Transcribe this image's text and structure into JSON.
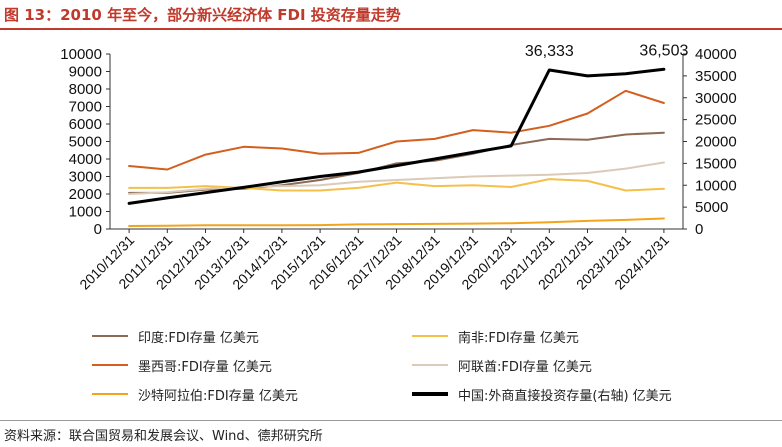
{
  "header": {
    "title": "图 13：2010 年至今，部分新兴经济体 FDI 投资存量走势"
  },
  "footer": {
    "source": "资料来源：联合国贸易和发展会议、Wind、德邦研究所"
  },
  "chart_data": {
    "type": "line",
    "categories": [
      "2010/12/31",
      "2011/12/31",
      "2012/12/31",
      "2013/12/31",
      "2014/12/31",
      "2015/12/31",
      "2016/12/31",
      "2017/12/31",
      "2018/12/31",
      "2019/12/31",
      "2020/12/31",
      "2021/12/31",
      "2022/12/31",
      "2023/12/31",
      "2024/12/31"
    ],
    "left_axis": {
      "ylim": [
        0,
        10000
      ],
      "ticks": [
        "0",
        "1000",
        "2000",
        "3000",
        "4000",
        "5000",
        "6000",
        "7000",
        "8000",
        "9000",
        "10000"
      ]
    },
    "right_axis": {
      "ylim": [
        0,
        40000
      ],
      "ticks": [
        "0",
        "5000",
        "10000",
        "15000",
        "20000",
        "25000",
        "30000",
        "35000",
        "40000"
      ]
    },
    "series": [
      {
        "name": "印度:FDI存量 亿美元",
        "axis": "left",
        "color": "#8b6b55",
        "values": [
          2060,
          2060,
          2250,
          2300,
          2500,
          2800,
          3200,
          3750,
          3900,
          4300,
          4800,
          5150,
          5100,
          5400,
          5500
        ]
      },
      {
        "name": "南非:FDI存量 亿美元",
        "axis": "left",
        "color": "#f5c04a",
        "values": [
          2350,
          2350,
          2450,
          2350,
          2200,
          2200,
          2350,
          2650,
          2450,
          2500,
          2400,
          2850,
          2750,
          2200,
          2300
        ]
      },
      {
        "name": "墨西哥:FDI存量 亿美元",
        "axis": "left",
        "color": "#d35f1e",
        "values": [
          3600,
          3400,
          4250,
          4700,
          4600,
          4300,
          4350,
          5000,
          5150,
          5650,
          5500,
          5900,
          6600,
          7900,
          7200
        ]
      },
      {
        "name": "阿联酋:FDI存量 亿美元",
        "axis": "left",
        "color": "#dccab8",
        "values": [
          2000,
          2100,
          2300,
          2400,
          2450,
          2500,
          2700,
          2800,
          2900,
          3000,
          3050,
          3100,
          3200,
          3450,
          3800
        ]
      },
      {
        "name": "沙特阿拉伯:FDI存量 亿美元",
        "axis": "left",
        "color": "#f2a51c",
        "values": [
          170,
          190,
          210,
          215,
          220,
          225,
          260,
          280,
          290,
          310,
          330,
          390,
          460,
          520,
          600
        ]
      },
      {
        "name": "中国:外商直接投资存量(右轴) 亿美元",
        "axis": "right",
        "color": "#000000",
        "values": [
          5850,
          7100,
          8300,
          9500,
          10800,
          12000,
          13000,
          14500,
          16000,
          17500,
          19000,
          36333,
          35000,
          35500,
          36503
        ]
      }
    ],
    "annotations": [
      {
        "text": "36,333",
        "series": "中国:外商直接投资存量(右轴) 亿美元",
        "category": "2021/12/31"
      },
      {
        "text": "36,503",
        "series": "中国:外商直接投资存量(右轴) 亿美元",
        "category": "2024/12/31"
      }
    ],
    "grid": false,
    "legend_position": "bottom"
  }
}
